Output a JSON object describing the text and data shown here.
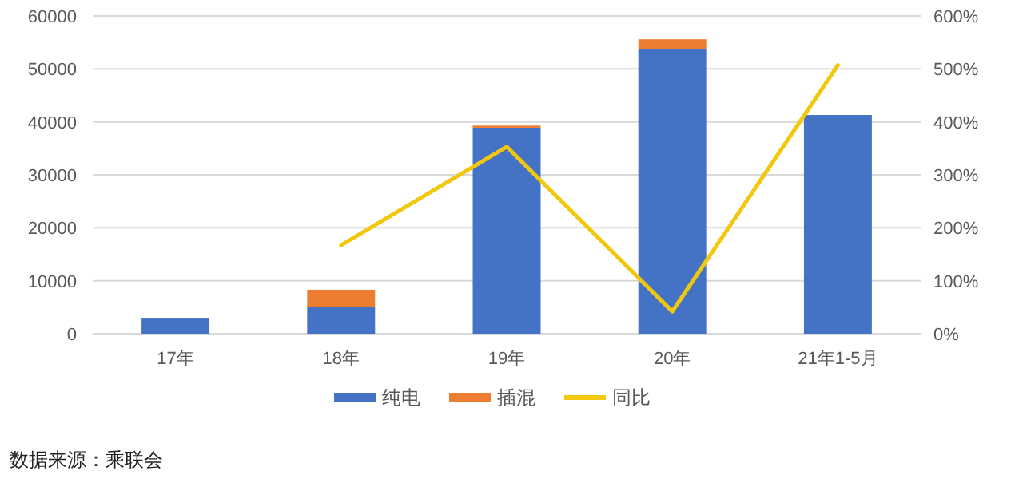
{
  "chart_data": {
    "type": "bar",
    "stacked": true,
    "categories": [
      "17年",
      "18年",
      "19年",
      "20年",
      "21年1-5月"
    ],
    "series": [
      {
        "name": "纯电",
        "color": "#4472c4",
        "values": [
          3000,
          5000,
          38900,
          53700,
          41300
        ]
      },
      {
        "name": "插混",
        "color": "#ed7d31",
        "values": [
          0,
          3300,
          400,
          1900,
          0
        ]
      },
      {
        "name": "同比",
        "type": "line",
        "axis": "y2",
        "color": "#f2c80f",
        "values": [
          null,
          167,
          353,
          42,
          507
        ]
      }
    ],
    "ylim": [
      0,
      60000
    ],
    "yticks": [
      0,
      10000,
      20000,
      30000,
      40000,
      50000,
      60000
    ],
    "y2lim": [
      0,
      600
    ],
    "y2ticks": [
      {
        "value": 0,
        "label": "0%"
      },
      {
        "value": 100,
        "label": "100%"
      },
      {
        "value": 200,
        "label": "200%"
      },
      {
        "value": 300,
        "label": "300%"
      },
      {
        "value": 400,
        "label": "400%"
      },
      {
        "value": 500,
        "label": "500%"
      },
      {
        "value": 600,
        "label": "600%"
      }
    ],
    "grid": "y",
    "legend": "bottom",
    "marker": "none",
    "line_style": "solid",
    "annotations": [
      "数据来源：乘联会"
    ]
  }
}
